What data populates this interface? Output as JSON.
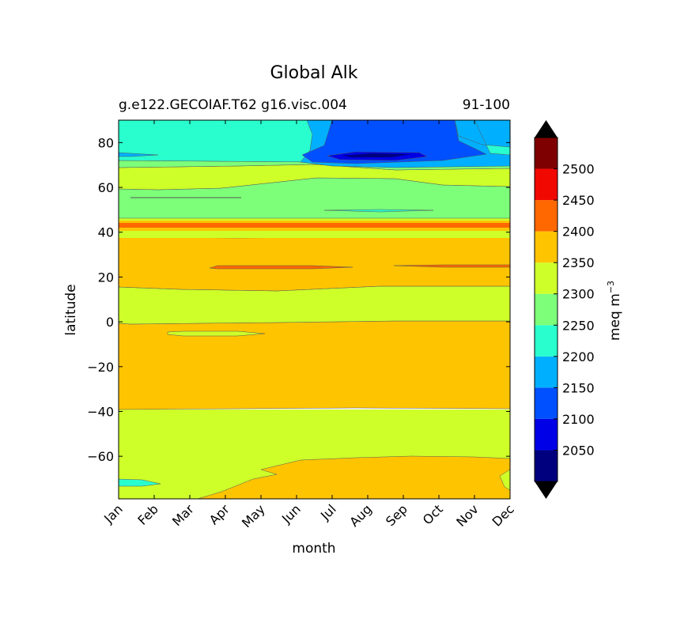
{
  "chart_data": {
    "type": "contourf",
    "title": "Global Alk",
    "subtitle_left": "g.e122.GECOIAF.T62 g16.visc.004",
    "subtitle_right": "91-100",
    "xlabel": "month",
    "ylabel": "latitude",
    "x_ticks": [
      "Jan",
      "Feb",
      "Mar",
      "Apr",
      "May",
      "Jun",
      "Jul",
      "Aug",
      "Sep",
      "Oct",
      "Nov",
      "Dec"
    ],
    "y_ticks": [
      80,
      60,
      40,
      20,
      0,
      -20,
      -40,
      -60
    ],
    "ylim": [
      -79,
      90
    ],
    "colorbar": {
      "label": "meq m",
      "label_exp": "−3",
      "levels": [
        2000,
        2050,
        2100,
        2150,
        2200,
        2250,
        2300,
        2350,
        2400,
        2450,
        2500,
        2550
      ],
      "tick_labels": [
        2050,
        2100,
        2150,
        2200,
        2250,
        2300,
        2350,
        2400,
        2450,
        2500
      ],
      "colors": [
        "#00007f",
        "#0000e6",
        "#0050ff",
        "#00b0ff",
        "#29ffce",
        "#7dff7a",
        "#ceff29",
        "#ffc400",
        "#ff6800",
        "#f10800",
        "#7f0000"
      ],
      "extend_colors": {
        "under": "#000000",
        "over": "#000000"
      }
    },
    "regions": [
      {
        "lat_range": [
          -79,
          -60
        ],
        "value_range": "2300-2350 (Jan-Apr) / 2350-2400 (May-Dec)"
      },
      {
        "lat_range": [
          -39,
          1
        ],
        "value_range": "2350-2400"
      },
      {
        "lat_range": [
          1,
          15
        ],
        "value_range": "2300-2350"
      },
      {
        "lat_range": [
          15,
          38
        ],
        "value_range": "2350-2400"
      },
      {
        "lat_range": [
          23,
          25
        ],
        "value_range": "2400-2450"
      },
      {
        "lat_range": [
          38,
          46
        ],
        "value_range": "2300-2450"
      },
      {
        "lat_range": [
          46,
          64
        ],
        "value_range": "2250-2300"
      },
      {
        "lat_range": [
          64,
          70
        ],
        "value_range": "2300-2350"
      },
      {
        "lat_range": [
          70,
          90
        ],
        "value_range": "2050-2250"
      }
    ]
  }
}
